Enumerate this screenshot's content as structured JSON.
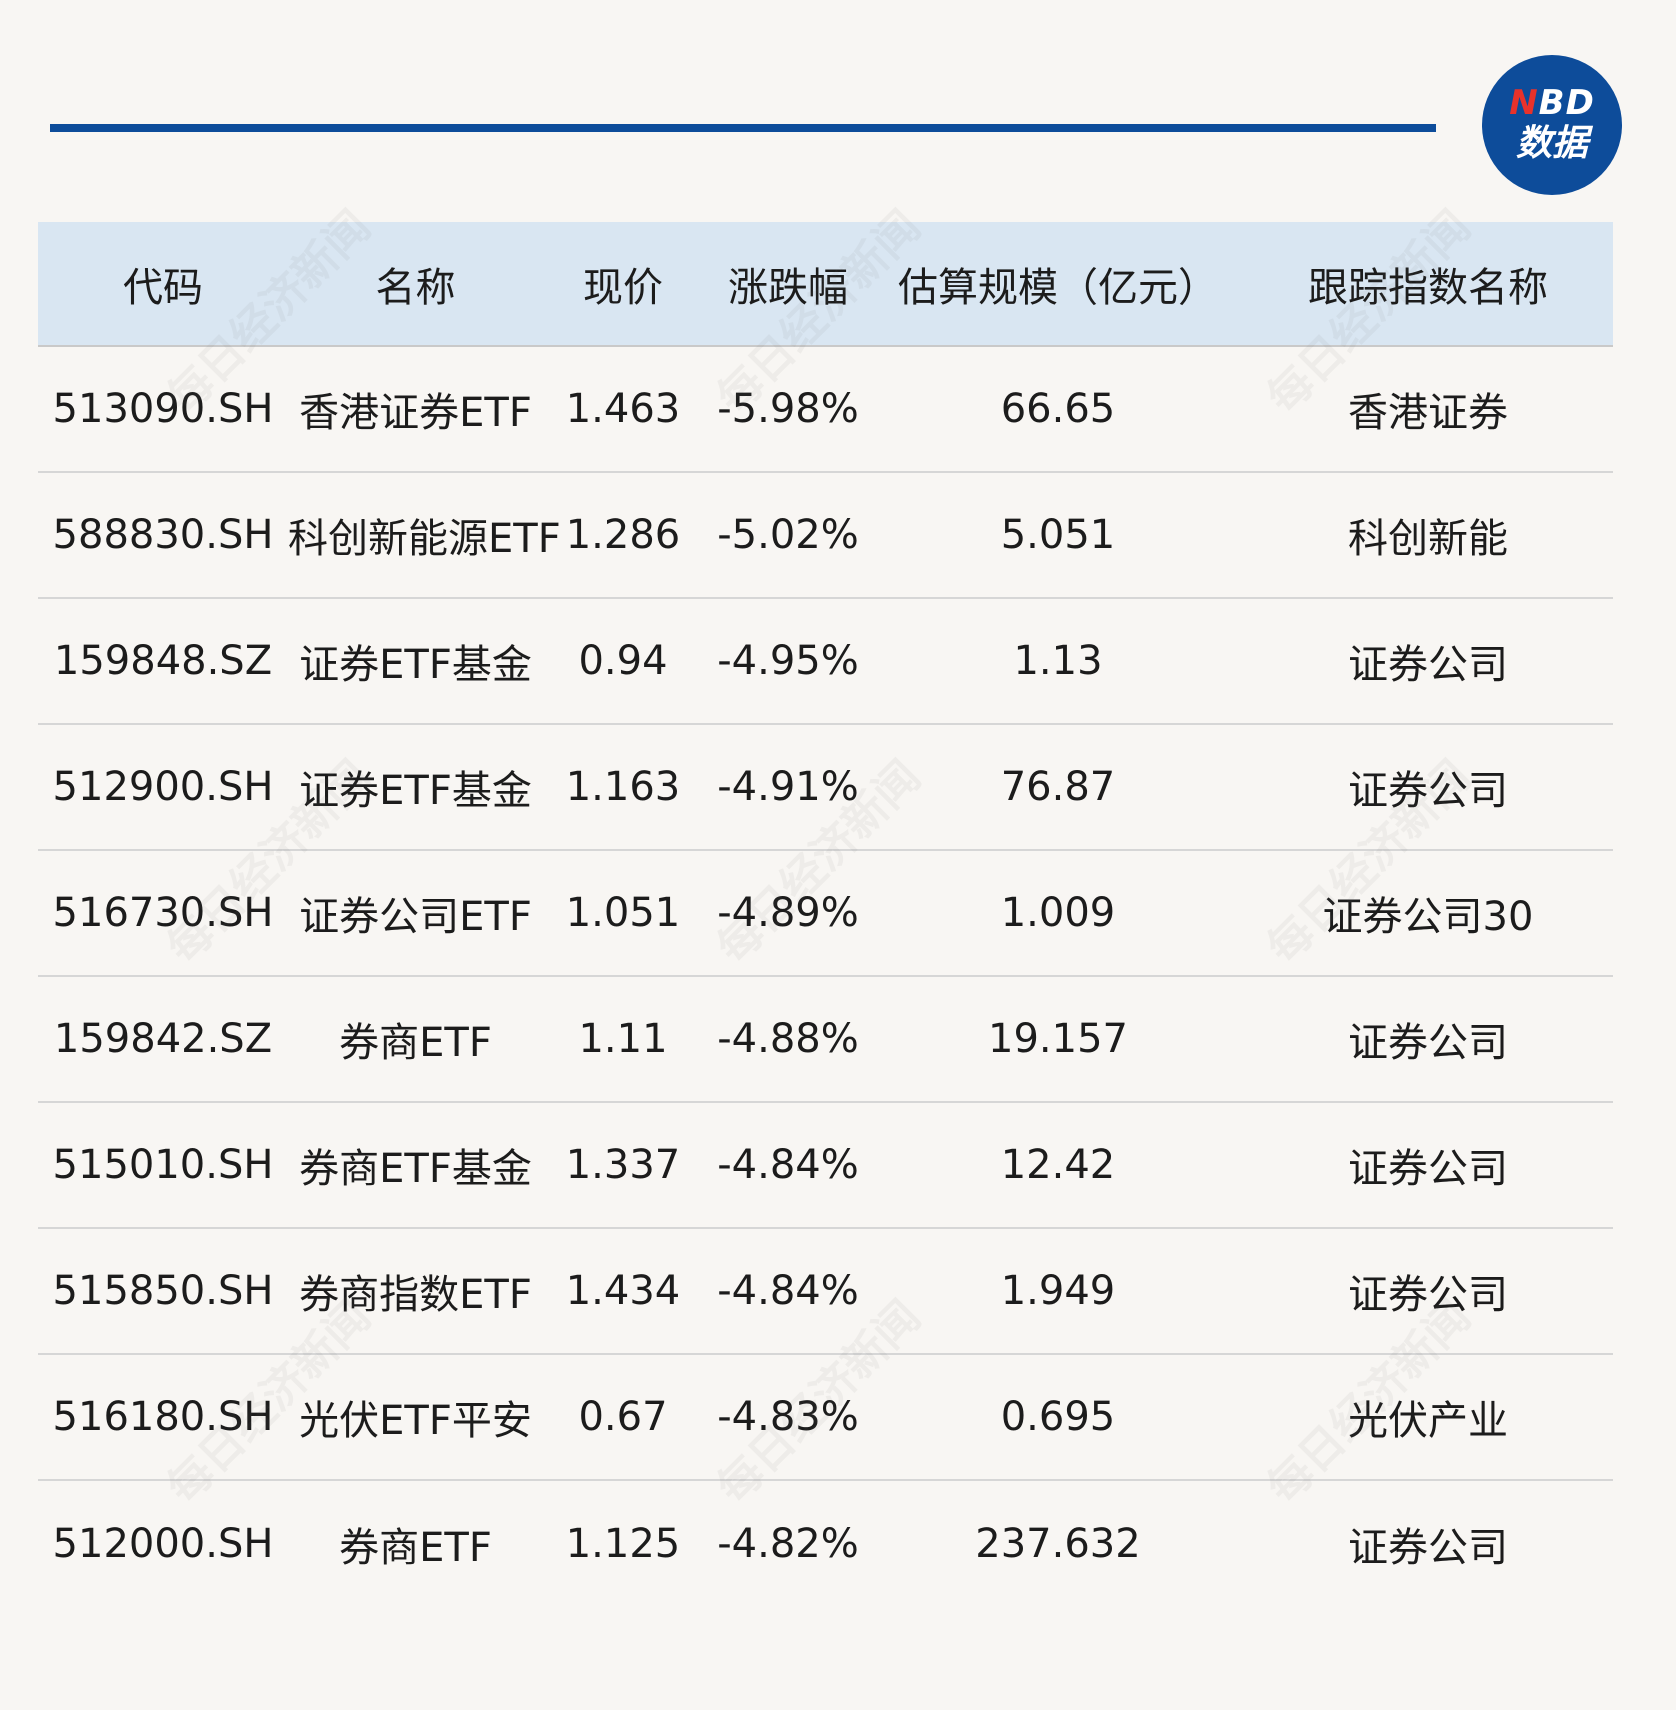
{
  "branding": {
    "logo_top": "NBD",
    "logo_bottom": "数据",
    "watermark_text": "每日经济新闻",
    "accent_color": "#0d4c9a",
    "logo_letter_color": "#e8322b",
    "header_background": "#d9e6f2"
  },
  "table": {
    "columns": [
      "代码",
      "名称",
      "现价",
      "涨跌幅",
      "估算规模（亿元）",
      "跟踪指数名称"
    ],
    "rows": [
      [
        "513090.SH",
        "香港证券ETF",
        "1.463",
        "-5.98%",
        "66.65",
        "香港证券"
      ],
      [
        "588830.SH",
        "科创新能源ETF",
        "1.286",
        "-5.02%",
        "5.051",
        "科创新能"
      ],
      [
        "159848.SZ",
        "证券ETF基金",
        "0.94",
        "-4.95%",
        "1.13",
        "证券公司"
      ],
      [
        "512900.SH",
        "证券ETF基金",
        "1.163",
        "-4.91%",
        "76.87",
        "证券公司"
      ],
      [
        "516730.SH",
        "证券公司ETF",
        "1.051",
        "-4.89%",
        "1.009",
        "证券公司30"
      ],
      [
        "159842.SZ",
        "券商ETF",
        "1.11",
        "-4.88%",
        "19.157",
        "证券公司"
      ],
      [
        "515010.SH",
        "券商ETF基金",
        "1.337",
        "-4.84%",
        "12.42",
        "证券公司"
      ],
      [
        "515850.SH",
        "券商指数ETF",
        "1.434",
        "-4.84%",
        "1.949",
        "证券公司"
      ],
      [
        "516180.SH",
        "光伏ETF平安",
        "0.67",
        "-4.83%",
        "0.695",
        "光伏产业"
      ],
      [
        "512000.SH",
        "券商ETF",
        "1.125",
        "-4.82%",
        "237.632",
        "证券公司"
      ]
    ]
  }
}
